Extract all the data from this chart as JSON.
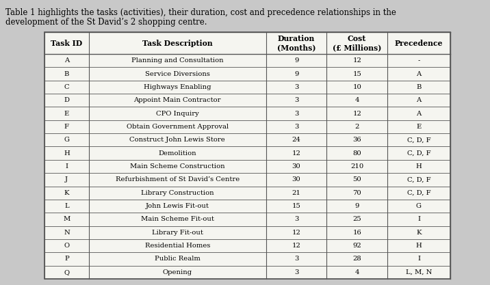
{
  "caption_line1": "Table 1 highlights the tasks (activities), their duration, cost and precedence relationships in the",
  "caption_line2": "development of the St David’s 2 shopping centre.",
  "headers": [
    "Task ID",
    "Task Description",
    "Duration\n(Months)",
    "Cost\n(£ Millions)",
    "Precedence"
  ],
  "rows": [
    [
      "A",
      "Planning and Consultation",
      "9",
      "12",
      "-"
    ],
    [
      "B",
      "Service Diversions",
      "9",
      "15",
      "A"
    ],
    [
      "C",
      "Highways Enabling",
      "3",
      "10",
      "B"
    ],
    [
      "D",
      "Appoint Main Contractor",
      "3",
      "4",
      "A"
    ],
    [
      "E",
      "CPO Inquiry",
      "3",
      "12",
      "A"
    ],
    [
      "F",
      "Obtain Government Approval",
      "3",
      "2",
      "E"
    ],
    [
      "G",
      "Construct John Lewis Store",
      "24",
      "36",
      "C, D, F"
    ],
    [
      "H",
      "Demolition",
      "12",
      "80",
      "C, D, F"
    ],
    [
      "I",
      "Main Scheme Construction",
      "30",
      "210",
      "H"
    ],
    [
      "J",
      "Refurbishment of St David’s Centre",
      "30",
      "50",
      "C, D, F"
    ],
    [
      "K",
      "Library Construction",
      "21",
      "70",
      "C, D, F"
    ],
    [
      "L",
      "John Lewis Fit-out",
      "15",
      "9",
      "G"
    ],
    [
      "M",
      "Main Scheme Fit-out",
      "3",
      "25",
      "I"
    ],
    [
      "N",
      "Library Fit-out",
      "12",
      "16",
      "K"
    ],
    [
      "O",
      "Residential Homes",
      "12",
      "92",
      "H"
    ],
    [
      "P",
      "Public Realm",
      "3",
      "28",
      "I"
    ],
    [
      "Q",
      "Opening",
      "3",
      "4",
      "L, M, N"
    ]
  ],
  "background_color": "#c8c8c8",
  "table_bg": "#f5f5f0",
  "line_color": "#555555",
  "caption_fontsize": 8.5,
  "header_fontsize": 7.8,
  "row_fontsize": 7.2
}
